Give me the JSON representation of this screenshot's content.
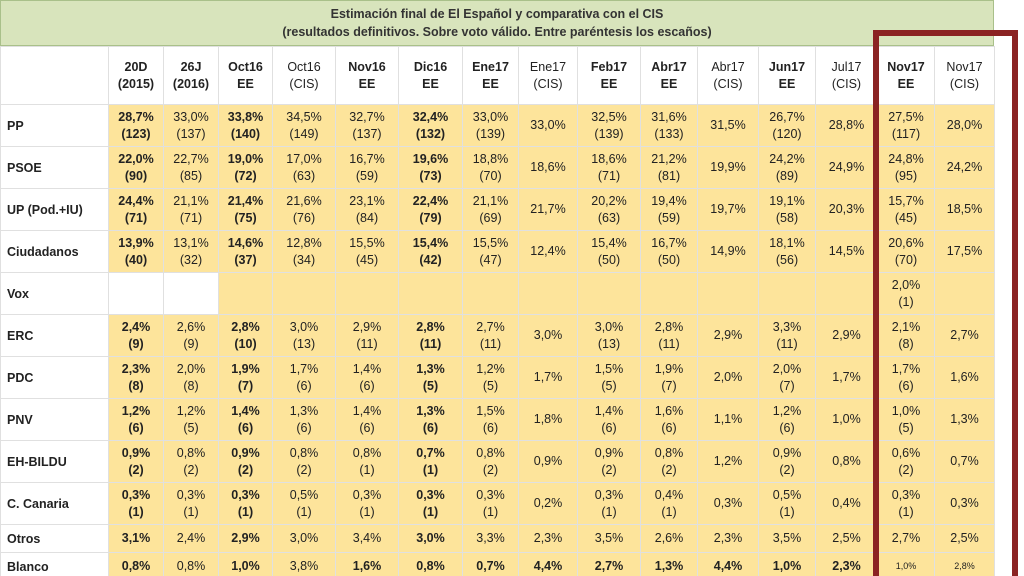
{
  "header": {
    "title": [
      "Estimación final de El Español y comparativa con el CIS",
      "(resultados definitivos. Sobre voto válido. Entre paréntesis los escaños)"
    ]
  },
  "table": {
    "columns": [
      [
        "20D",
        "(2015)"
      ],
      [
        "26J",
        "(2016)"
      ],
      [
        "Oct16",
        "EE"
      ],
      [
        "Oct16",
        "(CIS)"
      ],
      [
        "Nov16",
        "EE"
      ],
      [
        "Dic16",
        "EE"
      ],
      [
        "Ene17",
        "EE"
      ],
      [
        "Ene17",
        "(CIS)"
      ],
      [
        "Feb17",
        "EE"
      ],
      [
        "Abr17",
        "EE"
      ],
      [
        "Abr17",
        "(CIS)"
      ],
      [
        "Jun17",
        "EE"
      ],
      [
        "Jul17",
        "(CIS)"
      ],
      [
        "Nov17",
        "EE"
      ],
      [
        "Nov17",
        "(CIS)"
      ]
    ],
    "rows": [
      {
        "label": "PP",
        "cells": [
          [
            "28,7%",
            "(123)"
          ],
          [
            "33,0%",
            "(137)"
          ],
          [
            "33,8%",
            "(140)"
          ],
          [
            "34,5%",
            "(149)"
          ],
          [
            "32,7%",
            "(137)"
          ],
          [
            "32,4%",
            "(132)"
          ],
          [
            "33,0%",
            "(139)"
          ],
          [
            "33,0%"
          ],
          [
            "32,5%",
            "(139)"
          ],
          [
            "31,6%",
            "(133)"
          ],
          [
            "31,5%"
          ],
          [
            "26,7%",
            "(120)"
          ],
          [
            "28,8%"
          ],
          [
            "27,5%",
            "(117)"
          ],
          [
            "28,0%"
          ]
        ]
      },
      {
        "label": "PSOE",
        "cells": [
          [
            "22,0%",
            "(90)"
          ],
          [
            "22,7%",
            "(85)"
          ],
          [
            "19,0%",
            "(72)"
          ],
          [
            "17,0%",
            "(63)"
          ],
          [
            "16,7%",
            "(59)"
          ],
          [
            "19,6%",
            "(73)"
          ],
          [
            "18,8%",
            "(70)"
          ],
          [
            "18,6%"
          ],
          [
            "18,6%",
            "(71)"
          ],
          [
            "21,2%",
            "(81)"
          ],
          [
            "19,9%"
          ],
          [
            "24,2%",
            "(89)"
          ],
          [
            "24,9%"
          ],
          [
            "24,8%",
            "(95)"
          ],
          [
            "24,2%"
          ]
        ]
      },
      {
        "label": "UP (Pod.+IU)",
        "cells": [
          [
            "24,4%",
            "(71)"
          ],
          [
            "21,1%",
            "(71)"
          ],
          [
            "21,4%",
            "(75)"
          ],
          [
            "21,6%",
            "(76)"
          ],
          [
            "23,1%",
            "(84)"
          ],
          [
            "22,4%",
            "(79)"
          ],
          [
            "21,1%",
            "(69)"
          ],
          [
            "21,7%"
          ],
          [
            "20,2%",
            "(63)"
          ],
          [
            "19,4%",
            "(59)"
          ],
          [
            "19,7%"
          ],
          [
            "19,1%",
            "(58)"
          ],
          [
            "20,3%"
          ],
          [
            "15,7%",
            "(45)"
          ],
          [
            "18,5%"
          ]
        ]
      },
      {
        "label": "Ciudadanos",
        "cells": [
          [
            "13,9%",
            "(40)"
          ],
          [
            "13,1%",
            "(32)"
          ],
          [
            "14,6%",
            "(37)"
          ],
          [
            "12,8%",
            "(34)"
          ],
          [
            "15,5%",
            "(45)"
          ],
          [
            "15,4%",
            "(42)"
          ],
          [
            "15,5%",
            "(47)"
          ],
          [
            "12,4%"
          ],
          [
            "15,4%",
            "(50)"
          ],
          [
            "16,7%",
            "(50)"
          ],
          [
            "14,9%"
          ],
          [
            "18,1%",
            "(56)"
          ],
          [
            "14,5%"
          ],
          [
            "20,6%",
            "(70)"
          ],
          [
            "17,5%"
          ]
        ]
      },
      {
        "label": "Vox",
        "cells": [
          null,
          null,
          null,
          null,
          null,
          null,
          null,
          null,
          null,
          null,
          null,
          null,
          null,
          [
            "2,0%",
            "(1)"
          ],
          null
        ]
      },
      {
        "label": "ERC",
        "cells": [
          [
            "2,4%",
            "(9)"
          ],
          [
            "2,6%",
            "(9)"
          ],
          [
            "2,8%",
            "(10)"
          ],
          [
            "3,0%",
            "(13)"
          ],
          [
            "2,9%",
            "(11)"
          ],
          [
            "2,8%",
            "(11)"
          ],
          [
            "2,7%",
            "(11)"
          ],
          [
            "3,0%"
          ],
          [
            "3,0%",
            "(13)"
          ],
          [
            "2,8%",
            "(11)"
          ],
          [
            "2,9%"
          ],
          [
            "3,3%",
            "(11)"
          ],
          [
            "2,9%"
          ],
          [
            "2,1%",
            "(8)"
          ],
          [
            "2,7%"
          ]
        ]
      },
      {
        "label": "PDC",
        "cells": [
          [
            "2,3%",
            "(8)"
          ],
          [
            "2,0%",
            "(8)"
          ],
          [
            "1,9%",
            "(7)"
          ],
          [
            "1,7%",
            "(6)"
          ],
          [
            "1,4%",
            "(6)"
          ],
          [
            "1,3%",
            "(5)"
          ],
          [
            "1,2%",
            "(5)"
          ],
          [
            "1,7%"
          ],
          [
            "1,5%",
            "(5)"
          ],
          [
            "1,9%",
            "(7)"
          ],
          [
            "2,0%"
          ],
          [
            "2,0%",
            "(7)"
          ],
          [
            "1,7%"
          ],
          [
            "1,7%",
            "(6)"
          ],
          [
            "1,6%"
          ]
        ]
      },
      {
        "label": "PNV",
        "cells": [
          [
            "1,2%",
            "(6)"
          ],
          [
            "1,2%",
            "(5)"
          ],
          [
            "1,4%",
            "(6)"
          ],
          [
            "1,3%",
            "(6)"
          ],
          [
            "1,4%",
            "(6)"
          ],
          [
            "1,3%",
            "(6)"
          ],
          [
            "1,5%",
            "(6)"
          ],
          [
            "1,8%"
          ],
          [
            "1,4%",
            "(6)"
          ],
          [
            "1,6%",
            "(6)"
          ],
          [
            "1,1%"
          ],
          [
            "1,2%",
            "(6)"
          ],
          [
            "1,0%"
          ],
          [
            "1,0%",
            "(5)"
          ],
          [
            "1,3%"
          ]
        ]
      },
      {
        "label": "EH-BILDU",
        "cells": [
          [
            "0,9%",
            "(2)"
          ],
          [
            "0,8%",
            "(2)"
          ],
          [
            "0,9%",
            "(2)"
          ],
          [
            "0,8%",
            "(2)"
          ],
          [
            "0,8%",
            "(1)"
          ],
          [
            "0,7%",
            "(1)"
          ],
          [
            "0,8%",
            "(2)"
          ],
          [
            "0,9%"
          ],
          [
            "0,9%",
            "(2)"
          ],
          [
            "0,8%",
            "(2)"
          ],
          [
            "1,2%"
          ],
          [
            "0,9%",
            "(2)"
          ],
          [
            "0,8%"
          ],
          [
            "0,6%",
            "(2)"
          ],
          [
            "0,7%"
          ]
        ]
      },
      {
        "label": "C. Canaria",
        "cells": [
          [
            "0,3%",
            "(1)"
          ],
          [
            "0,3%",
            "(1)"
          ],
          [
            "0,3%",
            "(1)"
          ],
          [
            "0,5%",
            "(1)"
          ],
          [
            "0,3%",
            "(1)"
          ],
          [
            "0,3%",
            "(1)"
          ],
          [
            "0,3%",
            "(1)"
          ],
          [
            "0,2%"
          ],
          [
            "0,3%",
            "(1)"
          ],
          [
            "0,4%",
            "(1)"
          ],
          [
            "0,3%"
          ],
          [
            "0,5%",
            "(1)"
          ],
          [
            "0,4%"
          ],
          [
            "0,3%",
            "(1)"
          ],
          [
            "0,3%"
          ]
        ]
      },
      {
        "label": "Otros",
        "cells": [
          [
            "3,1%"
          ],
          [
            "2,4%"
          ],
          [
            "2,9%"
          ],
          [
            "3,0%"
          ],
          [
            "3,4%"
          ],
          [
            "3,0%"
          ],
          [
            "3,3%"
          ],
          [
            "2,3%"
          ],
          [
            "3,5%"
          ],
          [
            "2,6%"
          ],
          [
            "2,3%"
          ],
          [
            "3,5%"
          ],
          [
            "2,5%"
          ],
          [
            "2,7%"
          ],
          [
            "2,5%"
          ]
        ]
      },
      {
        "label": "Blanco",
        "cells": [
          [
            "0,8%"
          ],
          [
            "0,8%"
          ],
          [
            "1,0%"
          ],
          [
            "3,8%"
          ],
          [
            "1,6%"
          ],
          [
            "0,8%"
          ],
          [
            "0,7%"
          ],
          [
            "4,4%"
          ],
          [
            "2,7%"
          ],
          [
            "1,3%"
          ],
          [
            "4,4%"
          ],
          [
            "1,0%"
          ],
          [
            "2,3%"
          ],
          [
            "1,0%"
          ],
          [
            "2,8%"
          ]
        ]
      }
    ]
  }
}
